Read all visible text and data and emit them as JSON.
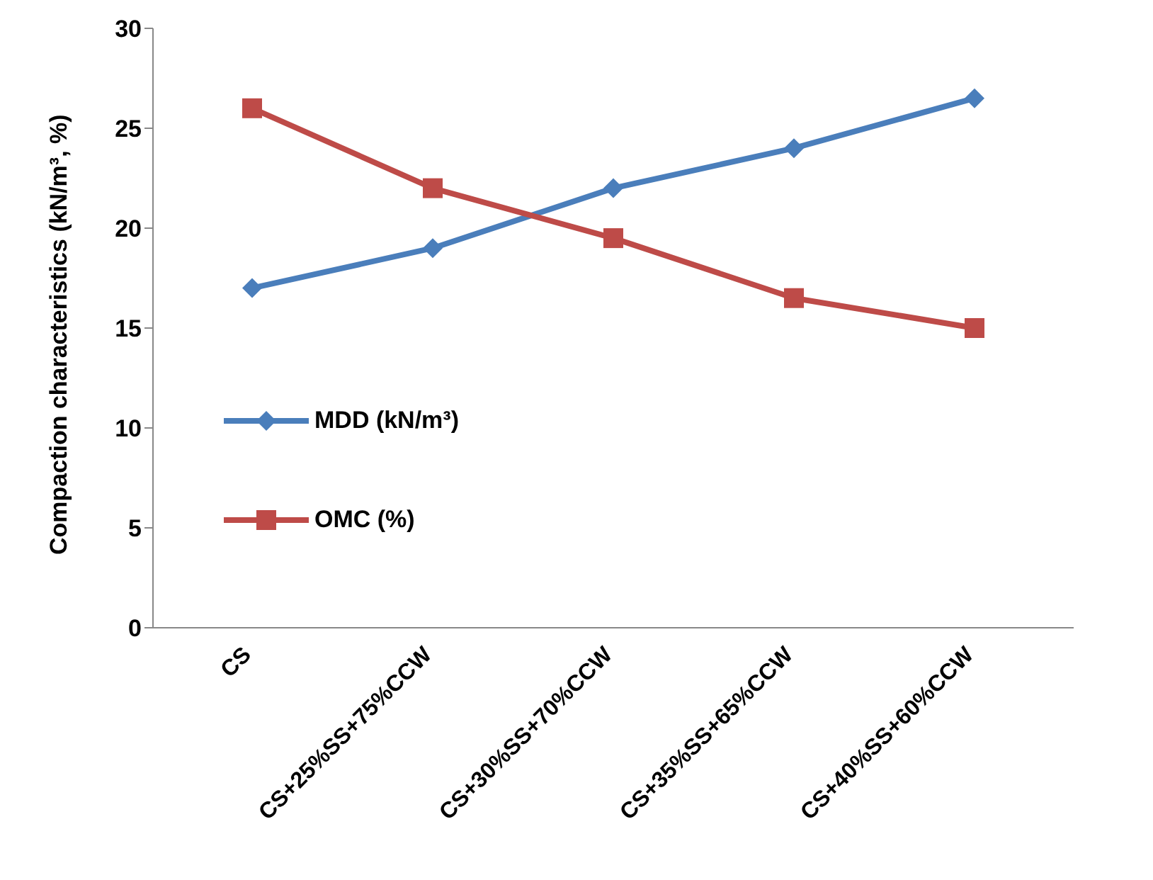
{
  "chart_data": {
    "type": "line",
    "ylabel": "Compaction characteristics (kN/m³, %)",
    "categories": [
      "CS",
      "CS+25%SS+75%CCW",
      "CS+30%SS+70%CCW",
      "CS+35%SS+65%CCW",
      "CS+40%SS+60%CCW"
    ],
    "series": [
      {
        "name": "MDD (kN/m³)",
        "color": "#4a7ebb",
        "marker": "diamond",
        "values": [
          17,
          19,
          22,
          24,
          26.5
        ]
      },
      {
        "name": "OMC (%)",
        "color": "#be4b48",
        "marker": "square",
        "values": [
          26,
          22,
          19.5,
          16.5,
          15
        ]
      }
    ],
    "ylim": [
      0,
      30
    ],
    "yticks": [
      0,
      5,
      10,
      15,
      20,
      25,
      30
    ],
    "grid": false,
    "legend": "left"
  }
}
